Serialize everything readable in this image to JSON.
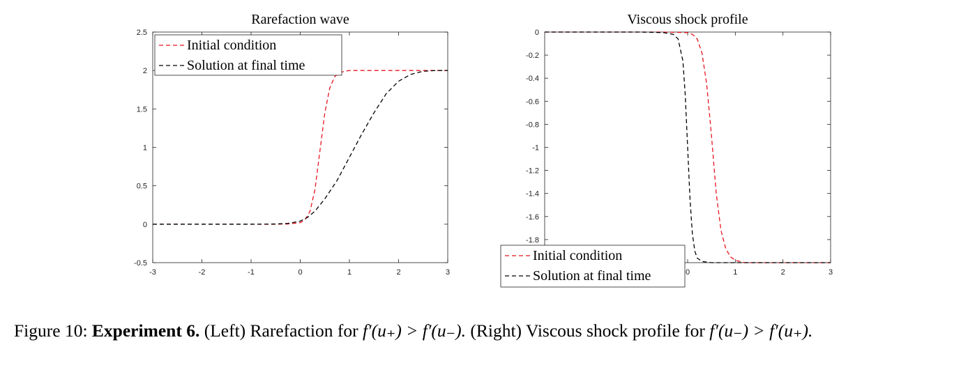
{
  "figure": {
    "caption_label": "Figure 10:",
    "caption_bold": "Experiment 6.",
    "caption_parts": {
      "left": "(Left) Rarefaction for",
      "left_math": "f′(u₊) > f′(u₋).",
      "right": "(Right) Viscous shock profile for",
      "right_math": "f′(u₋) > f′(u₊)."
    }
  },
  "colors": {
    "initial": "#e8141e",
    "final": "#000000",
    "axis": "#222222"
  },
  "chart_data": [
    {
      "type": "line",
      "title": "Rarefaction wave",
      "xlabel": "",
      "ylabel": "",
      "xlim": [
        -3,
        3
      ],
      "ylim": [
        -0.5,
        2.5
      ],
      "xticks": [
        -3,
        -2,
        -1,
        0,
        1,
        2,
        3
      ],
      "xtick_labels": [
        "-3",
        "-2",
        "-1",
        "0",
        "1",
        "2",
        "3"
      ],
      "yticks": [
        -0.5,
        0,
        0.5,
        1,
        1.5,
        2,
        2.5
      ],
      "ytick_labels": [
        "-0.5",
        "0",
        "0.5",
        "1",
        "1.5",
        "2",
        "2.5"
      ],
      "grid": false,
      "legend_position": "top-left",
      "series": [
        {
          "name": "Initial condition",
          "style": "dashed",
          "color": "#e8141e",
          "x": [
            -3,
            -1,
            -0.5,
            -0.25,
            0,
            0.1,
            0.2,
            0.3,
            0.4,
            0.5,
            0.6,
            0.7,
            0.8,
            0.9,
            1.0,
            1.2,
            1.5,
            2,
            3
          ],
          "y": [
            0,
            0,
            0,
            0.003,
            0.02,
            0.06,
            0.17,
            0.45,
            0.95,
            1.45,
            1.77,
            1.92,
            1.97,
            1.99,
            2.0,
            2.0,
            2.0,
            2.0,
            2.0
          ]
        },
        {
          "name": "Solution at final time",
          "style": "dashed",
          "color": "#000000",
          "x": [
            -3,
            -1,
            -0.5,
            -0.25,
            0,
            0.15,
            0.3,
            0.5,
            0.75,
            1.0,
            1.25,
            1.5,
            1.75,
            2.0,
            2.25,
            2.5,
            2.75,
            3
          ],
          "y": [
            0,
            0,
            0.003,
            0.01,
            0.04,
            0.09,
            0.17,
            0.33,
            0.57,
            0.87,
            1.17,
            1.45,
            1.7,
            1.86,
            1.95,
            1.99,
            2.0,
            2.0
          ]
        }
      ]
    },
    {
      "type": "line",
      "title": "Viscous shock profile",
      "xlabel": "",
      "ylabel": "",
      "xlim": [
        -3,
        3
      ],
      "ylim": [
        -2,
        0
      ],
      "xticks": [
        0,
        1,
        2,
        3
      ],
      "xtick_labels": [
        "0",
        "1",
        "2",
        "3"
      ],
      "yticks": [
        0,
        -0.2,
        -0.4,
        -0.6,
        -0.8,
        -1,
        -1.2,
        -1.4,
        -1.6,
        -1.8
      ],
      "ytick_labels": [
        "0",
        "-0.2",
        "-0.4",
        "-0.6",
        "-0.8",
        "-1",
        "-1.2",
        "-1.4",
        "-1.6",
        "-1.8"
      ],
      "grid": false,
      "legend_position": "bottom-left",
      "series": [
        {
          "name": "Initial condition",
          "style": "dashed",
          "color": "#e8141e",
          "x": [
            -3,
            -0.5,
            0,
            0.1,
            0.2,
            0.3,
            0.4,
            0.5,
            0.6,
            0.7,
            0.8,
            0.9,
            1.0,
            1.2,
            1.5,
            3
          ],
          "y": [
            0,
            0,
            -0.005,
            -0.02,
            -0.06,
            -0.18,
            -0.45,
            -0.9,
            -1.4,
            -1.72,
            -1.88,
            -1.95,
            -1.98,
            -2.0,
            -2.0,
            -2.0
          ]
        },
        {
          "name": "Solution at final time",
          "style": "dashed",
          "color": "#000000",
          "x": [
            -3,
            -1,
            -0.5,
            -0.3,
            -0.2,
            -0.1,
            -0.05,
            0,
            0.05,
            0.1,
            0.15,
            0.2,
            0.3,
            0.5,
            1,
            3
          ],
          "y": [
            0,
            0,
            -0.005,
            -0.02,
            -0.06,
            -0.25,
            -0.55,
            -1.0,
            -1.45,
            -1.75,
            -1.9,
            -1.96,
            -1.99,
            -2.0,
            -2.0,
            -2.0
          ]
        }
      ]
    }
  ]
}
